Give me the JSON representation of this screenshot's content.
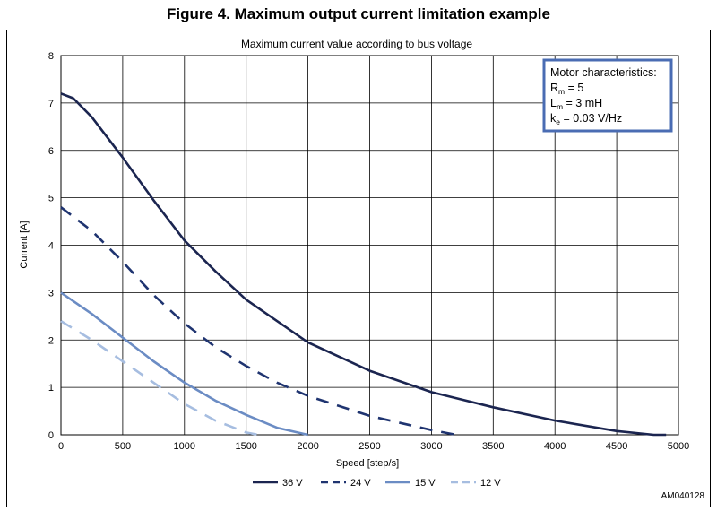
{
  "figure_title": "Figure 4. Maximum output current limitation example",
  "figure_code": "AM040128",
  "motor_box": {
    "heading": "Motor characteristics:",
    "lines": [
      {
        "symbol": "R",
        "sub": "m",
        "rest": " = 5"
      },
      {
        "symbol": "L",
        "sub": "m",
        "rest": " = 3 mH"
      },
      {
        "symbol": "k",
        "sub": "e",
        "rest": " = 0.03 V/Hz"
      }
    ]
  },
  "colors": {
    "grid": "#000000",
    "box_border": "#4a6cb3"
  },
  "chart_data": {
    "type": "line",
    "title": "Maximum current value according to bus voltage",
    "xlabel": "Speed [step/s]",
    "ylabel": "Current [A]",
    "xlim": [
      0,
      5000
    ],
    "ylim": [
      0,
      8
    ],
    "xticks": [
      0,
      500,
      1000,
      1500,
      2000,
      2500,
      3000,
      3500,
      4000,
      4500,
      5000
    ],
    "yticks": [
      0,
      1,
      2,
      3,
      4,
      5,
      6,
      7,
      8
    ],
    "grid": true,
    "legend_position": "bottom",
    "series": [
      {
        "name": "36 V",
        "color": "#1b2550",
        "dash": "solid",
        "x": [
          0,
          100,
          250,
          500,
          750,
          1000,
          1250,
          1500,
          2000,
          2500,
          3000,
          3500,
          4000,
          4500,
          4800,
          4900
        ],
        "y": [
          7.2,
          7.1,
          6.7,
          5.85,
          4.95,
          4.1,
          3.45,
          2.85,
          1.95,
          1.35,
          0.9,
          0.58,
          0.3,
          0.08,
          0.0,
          0.0
        ]
      },
      {
        "name": "24 V",
        "color": "#1f3470",
        "dash": "dashed",
        "x": [
          0,
          250,
          500,
          750,
          1000,
          1250,
          1500,
          1750,
          2000,
          2500,
          3000,
          3200
        ],
        "y": [
          4.8,
          4.3,
          3.65,
          2.95,
          2.35,
          1.85,
          1.45,
          1.1,
          0.82,
          0.4,
          0.1,
          0.0
        ]
      },
      {
        "name": "15 V",
        "color": "#6b8cc4",
        "dash": "solid",
        "x": [
          0,
          250,
          500,
          750,
          1000,
          1250,
          1500,
          1750,
          2000
        ],
        "y": [
          3.0,
          2.55,
          2.05,
          1.55,
          1.1,
          0.72,
          0.42,
          0.15,
          0.0
        ]
      },
      {
        "name": "12 V",
        "color": "#a6bde0",
        "dash": "dashed",
        "x": [
          0,
          250,
          500,
          750,
          1000,
          1250,
          1500,
          1600
        ],
        "y": [
          2.4,
          2.0,
          1.55,
          1.1,
          0.65,
          0.3,
          0.05,
          0.0
        ]
      }
    ]
  }
}
